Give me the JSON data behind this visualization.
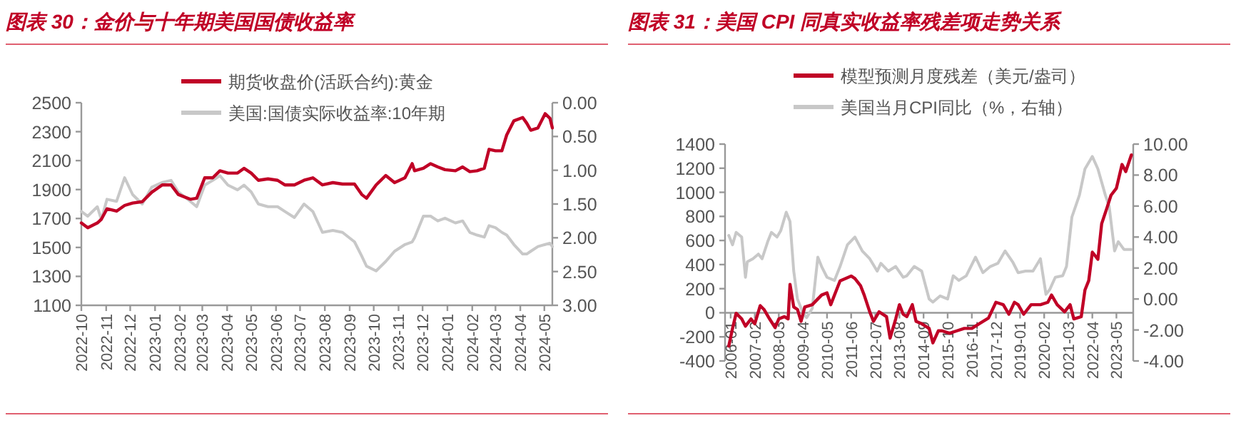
{
  "chart_data": [
    {
      "type": "line",
      "title": "图表 30：金价与十年期美国国债收益率",
      "legend": "top",
      "x": [
        "2022-10-01",
        "2022-10-09",
        "2022-10-21",
        "2022-10-26",
        "2022-11-02",
        "2022-11-14",
        "2022-11-24",
        "2022-12-04",
        "2022-12-16",
        "2022-12-28",
        "2023-01-10",
        "2023-01-21",
        "2023-01-30",
        "2023-02-14",
        "2023-02-22",
        "2023-03-04",
        "2023-03-14",
        "2023-03-23",
        "2023-04-02",
        "2023-04-14",
        "2023-04-22",
        "2023-05-01",
        "2023-05-10",
        "2023-05-22",
        "2023-06-03",
        "2023-06-12",
        "2023-06-24",
        "2023-07-06",
        "2023-07-17",
        "2023-07-29",
        "2023-08-11",
        "2023-08-23",
        "2023-09-07",
        "2023-09-16",
        "2023-09-22",
        "2023-10-04",
        "2023-10-16",
        "2023-10-27",
        "2023-11-09",
        "2023-11-18",
        "2023-11-21",
        "2023-12-02",
        "2023-12-11",
        "2023-12-20",
        "2023-12-29",
        "2024-01-11",
        "2024-01-20",
        "2024-01-29",
        "2024-02-07",
        "2024-02-16",
        "2024-02-22",
        "2024-03-01",
        "2024-03-09",
        "2024-03-15",
        "2024-03-24",
        "2024-04-04",
        "2024-04-09",
        "2024-04-14",
        "2024-04-23",
        "2024-05-02",
        "2024-05-08",
        "2024-05-11"
      ],
      "xlim": [
        "2022-10-01",
        "2024-05-11"
      ],
      "xticks": [
        "2022-10",
        "2022-11",
        "2022-12",
        "2023-01",
        "2023-02",
        "2023-03",
        "2023-04",
        "2023-05",
        "2023-06",
        "2023-07",
        "2023-08",
        "2023-09",
        "2023-10",
        "2023-11",
        "2023-12",
        "2024-01",
        "2024-02",
        "2024-03",
        "2024-04",
        "2024-05"
      ],
      "ylim": [
        1100,
        2500
      ],
      "yticks": [
        1100,
        1300,
        1500,
        1700,
        1900,
        2100,
        2300,
        2500
      ],
      "y2lim": [
        3,
        0
      ],
      "y2ticks": [
        {
          "value": 0,
          "label": "0.00"
        },
        {
          "value": 0.5,
          "label": "0.50"
        },
        {
          "value": 1,
          "label": "1.00"
        },
        {
          "value": 1.5,
          "label": "1.50"
        },
        {
          "value": 2,
          "label": "2.00"
        },
        {
          "value": 2.5,
          "label": "2.50"
        },
        {
          "value": 3,
          "label": "3.00"
        }
      ],
      "series": [
        {
          "name": "期货收盘价(活跃合约):黄金",
          "color": "#c00026",
          "values": [
            1669,
            1636,
            1669,
            1695,
            1767,
            1751,
            1790,
            1807,
            1816,
            1882,
            1932,
            1932,
            1866,
            1833,
            1840,
            1981,
            1981,
            2030,
            2014,
            2014,
            2047,
            2014,
            1964,
            1974,
            1964,
            1932,
            1932,
            1964,
            1981,
            1932,
            1948,
            1938,
            1938,
            1866,
            1840,
            1932,
            1997,
            1948,
            1981,
            2079,
            2030,
            2047,
            2079,
            2056,
            2037,
            2030,
            2056,
            2024,
            2030,
            2047,
            2178,
            2168,
            2168,
            2277,
            2375,
            2398,
            2359,
            2310,
            2326,
            2424,
            2392,
            2326
          ]
        },
        {
          "name": "美国:国债实际收益率:10年期",
          "color": "#c8c8c8",
          "axis": "y2",
          "values": [
            1.61,
            1.68,
            1.54,
            1.73,
            1.43,
            1.46,
            1.11,
            1.36,
            1.5,
            1.25,
            1.18,
            1.15,
            1.32,
            1.46,
            1.54,
            1.22,
            1.15,
            1.08,
            1.22,
            1.29,
            1.22,
            1.32,
            1.5,
            1.54,
            1.54,
            1.61,
            1.7,
            1.5,
            1.61,
            1.92,
            1.89,
            1.92,
            2.06,
            2.27,
            2.42,
            2.49,
            2.35,
            2.2,
            2.1,
            2.06,
            2.0,
            1.68,
            1.68,
            1.75,
            1.71,
            1.78,
            1.75,
            1.92,
            1.96,
            1.99,
            1.82,
            1.85,
            1.92,
            1.96,
            2.1,
            2.24,
            2.24,
            2.2,
            2.13,
            2.1,
            2.08,
            2.13
          ]
        }
      ]
    },
    {
      "type": "line",
      "title": "图表 31：美国 CPI 同真实收益率残差项走势关系",
      "legend": "top",
      "xlim": [
        "2005-10",
        "2024-02"
      ],
      "xticks": [
        "2006-01",
        "2007-02",
        "2008-03",
        "2009-04",
        "2010-05",
        "2011-06",
        "2012-07",
        "2013-08",
        "2014-09",
        "2015-10",
        "2016-11",
        "2017-12",
        "2019-01",
        "2020-02",
        "2021-03",
        "2022-04",
        "2023-05"
      ],
      "ylim": [
        -400,
        1400
      ],
      "yticks": [
        -400,
        -200,
        0,
        200,
        400,
        600,
        800,
        1000,
        1200,
        1400
      ],
      "y2lim": [
        -4,
        10
      ],
      "y2ticks": [
        {
          "value": -4,
          "label": "-4.00"
        },
        {
          "value": -2,
          "label": "-2.00"
        },
        {
          "value": 0,
          "label": "0.00"
        },
        {
          "value": 2,
          "label": "2.00"
        },
        {
          "value": 4,
          "label": "4.00"
        },
        {
          "value": 6,
          "label": "6.00"
        },
        {
          "value": 8,
          "label": "8.00"
        },
        {
          "value": 10,
          "label": "10.00"
        }
      ],
      "series": [
        {
          "name": "模型预测月度残差（美元/盎司）",
          "color": "#c00026",
          "x": [
            "2005-12",
            "2006-02",
            "2006-04",
            "2006-07",
            "2006-09",
            "2006-12",
            "2007-02",
            "2007-05",
            "2007-07",
            "2007-10",
            "2008-01",
            "2008-03",
            "2008-06",
            "2008-08",
            "2008-09",
            "2008-11",
            "2009-01",
            "2009-03",
            "2009-05",
            "2009-09",
            "2010-02",
            "2010-05",
            "2010-07",
            "2010-10",
            "2010-12",
            "2011-06",
            "2011-08",
            "2011-11",
            "2012-01",
            "2012-04",
            "2012-06",
            "2012-09",
            "2013-01",
            "2013-03",
            "2013-06",
            "2013-08",
            "2013-10",
            "2013-12",
            "2014-03",
            "2014-05",
            "2014-08",
            "2014-12",
            "2015-02",
            "2015-05",
            "2015-07",
            "2015-11",
            "2016-03",
            "2016-07",
            "2016-11",
            "2017-03",
            "2017-08",
            "2017-12",
            "2018-04",
            "2018-07",
            "2018-10",
            "2018-12",
            "2019-03",
            "2019-07",
            "2019-12",
            "2020-04",
            "2020-06",
            "2020-09",
            "2021-01",
            "2021-04",
            "2021-06",
            "2021-10",
            "2021-12",
            "2022-02",
            "2022-04",
            "2022-07",
            "2022-09",
            "2022-12",
            "2023-02",
            "2023-05",
            "2023-08",
            "2023-10",
            "2024-01"
          ],
          "values": [
            -277,
            -130,
            -4,
            -51,
            -111,
            -51,
            -91,
            59,
            28,
            -51,
            -123,
            -51,
            -32,
            -51,
            236,
            48,
            28,
            -71,
            48,
            67,
            147,
            165,
            67,
            186,
            265,
            305,
            285,
            226,
            147,
            8,
            -71,
            8,
            -32,
            -210,
            -51,
            67,
            -12,
            -32,
            67,
            -71,
            -91,
            -130,
            -250,
            -150,
            -150,
            -170,
            -150,
            -130,
            -130,
            -91,
            -44,
            87,
            67,
            -12,
            87,
            67,
            -12,
            67,
            67,
            87,
            147,
            67,
            8,
            67,
            -51,
            -32,
            189,
            267,
            503,
            444,
            739,
            877,
            975,
            1034,
            1231,
            1172,
            1310
          ]
        },
        {
          "name": "美国当月CPI同比（%，右轴）",
          "color": "#c8c8c8",
          "axis": "y2",
          "x": [
            "2005-12",
            "2006-02",
            "2006-04",
            "2006-07",
            "2006-09",
            "2006-10",
            "2007-01",
            "2007-04",
            "2007-06",
            "2007-09",
            "2007-11",
            "2008-02",
            "2008-04",
            "2008-07",
            "2008-09",
            "2008-11",
            "2009-01",
            "2009-04",
            "2009-06",
            "2009-09",
            "2009-12",
            "2010-02",
            "2010-05",
            "2010-09",
            "2010-12",
            "2011-04",
            "2011-08",
            "2011-12",
            "2012-04",
            "2012-08",
            "2012-10",
            "2013-02",
            "2013-06",
            "2013-10",
            "2013-12",
            "2014-04",
            "2014-08",
            "2014-12",
            "2015-02",
            "2015-06",
            "2015-10",
            "2016-01",
            "2016-04",
            "2016-08",
            "2017-01",
            "2017-05",
            "2017-09",
            "2018-01",
            "2018-05",
            "2018-09",
            "2018-12",
            "2019-04",
            "2019-08",
            "2019-12",
            "2020-03",
            "2020-05",
            "2020-08",
            "2020-12",
            "2021-02",
            "2021-05",
            "2021-09",
            "2021-12",
            "2022-04",
            "2022-07",
            "2022-11",
            "2023-01",
            "2023-04",
            "2023-06",
            "2023-09",
            "2024-01"
          ],
          "values": [
            4.1,
            3.5,
            4.3,
            4.0,
            1.4,
            2.4,
            2.6,
            2.9,
            2.6,
            3.7,
            4.3,
            4.0,
            4.4,
            5.6,
            5.0,
            1.8,
            0.0,
            -0.9,
            -1.2,
            -0.6,
            2.7,
            2.1,
            1.4,
            1.2,
            2.1,
            3.5,
            4.0,
            3.1,
            2.6,
            1.8,
            2.3,
            1.8,
            2.1,
            1.4,
            1.5,
            2.1,
            1.8,
            0.0,
            -0.2,
            0.2,
            0.0,
            1.5,
            1.2,
            1.5,
            2.7,
            1.7,
            2.1,
            2.3,
            3.1,
            2.4,
            1.7,
            1.8,
            1.8,
            2.6,
            0.3,
            0.6,
            1.4,
            1.5,
            2.1,
            5.3,
            6.7,
            8.4,
            9.2,
            8.4,
            6.7,
            6.0,
            3.1,
            3.7,
            3.2,
            3.2
          ]
        }
      ]
    }
  ]
}
